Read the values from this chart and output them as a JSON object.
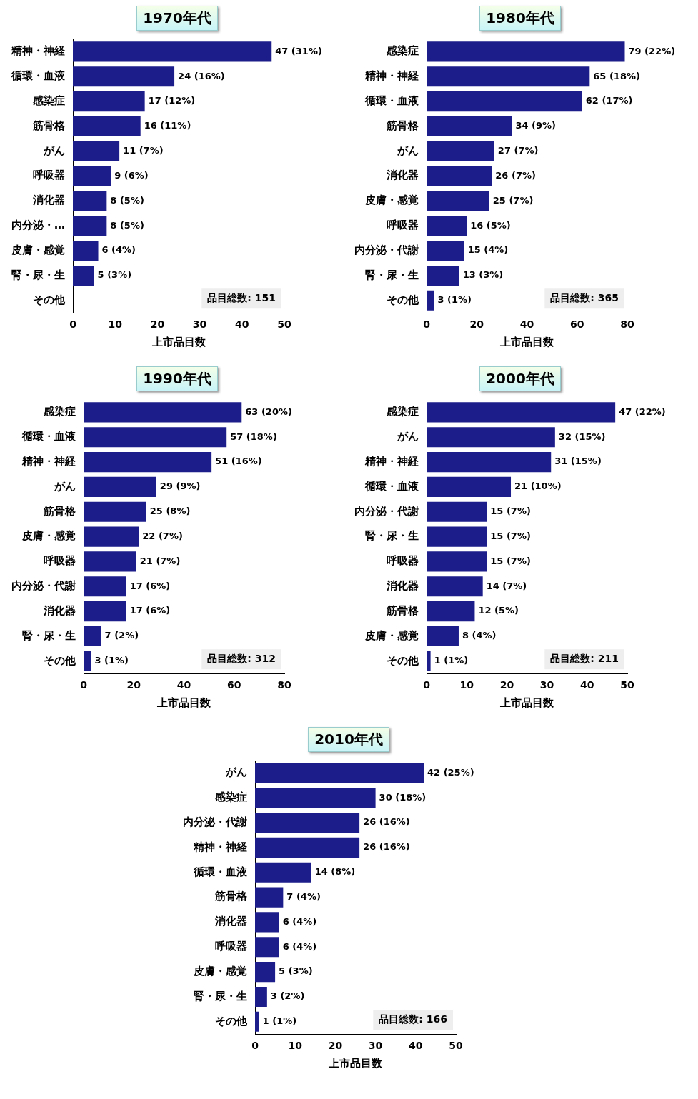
{
  "chart_data": [
    {
      "type": "bar",
      "orientation": "horizontal",
      "title": "1970年代",
      "xlabel": "上市品目数",
      "categories": [
        "精神・神経",
        "循環・血液",
        "感染症",
        "筋骨格",
        "がん",
        "呼吸器",
        "消化器",
        "内分泌・…",
        "皮膚・感覚",
        "腎・尿・生",
        "その他"
      ],
      "values": [
        47,
        24,
        17,
        16,
        11,
        9,
        8,
        8,
        6,
        5,
        null
      ],
      "value_labels": [
        "47 (31%)",
        "24 (16%)",
        "17 (12%)",
        "16 (11%)",
        "11 (7%)",
        "9 (6%)",
        "8 (5%)",
        "8 (5%)",
        "6 (4%)",
        "5 (3%)",
        null
      ],
      "color": "#1c1c8a",
      "xlim": [
        0,
        50
      ],
      "xticks": [
        0,
        10,
        20,
        30,
        40,
        50
      ],
      "grid": false,
      "legend": false,
      "annotations": [
        "品目総数: 151"
      ]
    },
    {
      "type": "bar",
      "orientation": "horizontal",
      "title": "1980年代",
      "xlabel": "上市品目数",
      "categories": [
        "感染症",
        "精神・神経",
        "循環・血液",
        "筋骨格",
        "がん",
        "消化器",
        "皮膚・感覚",
        "呼吸器",
        "内分泌・代謝",
        "腎・尿・生",
        "その他"
      ],
      "values": [
        79,
        65,
        62,
        34,
        27,
        26,
        25,
        16,
        15,
        13,
        3
      ],
      "value_labels": [
        "79 (22%)",
        "65 (18%)",
        "62 (17%)",
        "34 (9%)",
        "27 (7%)",
        "26 (7%)",
        "25 (7%)",
        "16 (5%)",
        "15 (4%)",
        "13 (3%)",
        "3 (1%)"
      ],
      "color": "#1c1c8a",
      "xlim": [
        0,
        80
      ],
      "xticks": [
        0,
        20,
        40,
        60,
        80
      ],
      "grid": false,
      "legend": false,
      "annotations": [
        "品目総数: 365"
      ]
    },
    {
      "type": "bar",
      "orientation": "horizontal",
      "title": "1990年代",
      "xlabel": "上市品目数",
      "categories": [
        "感染症",
        "循環・血液",
        "精神・神経",
        "がん",
        "筋骨格",
        "皮膚・感覚",
        "呼吸器",
        "内分泌・代謝",
        "消化器",
        "腎・尿・生",
        "その他"
      ],
      "values": [
        63,
        57,
        51,
        29,
        25,
        22,
        21,
        17,
        17,
        7,
        3
      ],
      "value_labels": [
        "63 (20%)",
        "57 (18%)",
        "51 (16%)",
        "29 (9%)",
        "25 (8%)",
        "22 (7%)",
        "21 (7%)",
        "17 (6%)",
        "17 (6%)",
        "7 (2%)",
        "3 (1%)"
      ],
      "color": "#1c1c8a",
      "xlim": [
        0,
        80
      ],
      "xticks": [
        0,
        20,
        40,
        60,
        80
      ],
      "grid": false,
      "legend": false,
      "annotations": [
        "品目総数: 312"
      ]
    },
    {
      "type": "bar",
      "orientation": "horizontal",
      "title": "2000年代",
      "xlabel": "上市品目数",
      "categories": [
        "感染症",
        "がん",
        "精神・神経",
        "循環・血液",
        "内分泌・代謝",
        "腎・尿・生",
        "呼吸器",
        "消化器",
        "筋骨格",
        "皮膚・感覚",
        "その他"
      ],
      "values": [
        47,
        32,
        31,
        21,
        15,
        15,
        15,
        14,
        12,
        8,
        1
      ],
      "value_labels": [
        "47 (22%)",
        "32 (15%)",
        "31 (15%)",
        "21 (10%)",
        "15 (7%)",
        "15 (7%)",
        "15 (7%)",
        "14 (7%)",
        "12 (5%)",
        "8 (4%)",
        "1 (1%)"
      ],
      "color": "#1c1c8a",
      "xlim": [
        0,
        50
      ],
      "xticks": [
        0,
        10,
        20,
        30,
        40,
        50
      ],
      "grid": false,
      "legend": false,
      "annotations": [
        "品目総数: 211"
      ]
    },
    {
      "type": "bar",
      "orientation": "horizontal",
      "title": "2010年代",
      "xlabel": "上市品目数",
      "categories": [
        "がん",
        "感染症",
        "内分泌・代謝",
        "精神・神経",
        "循環・血液",
        "筋骨格",
        "消化器",
        "呼吸器",
        "皮膚・感覚",
        "腎・尿・生",
        "その他"
      ],
      "values": [
        42,
        30,
        26,
        26,
        14,
        7,
        6,
        6,
        5,
        3,
        1
      ],
      "value_labels": [
        "42 (25%)",
        "30 (18%)",
        "26 (16%)",
        "26 (16%)",
        "14 (8%)",
        "7 (4%)",
        "6 (4%)",
        "6 (4%)",
        "5 (3%)",
        "3 (2%)",
        "1 (1%)"
      ],
      "color": "#1c1c8a",
      "xlim": [
        0,
        50
      ],
      "xticks": [
        0,
        10,
        20,
        30,
        40,
        50
      ],
      "grid": false,
      "legend": false,
      "annotations": [
        "品目総数: 166"
      ]
    }
  ]
}
